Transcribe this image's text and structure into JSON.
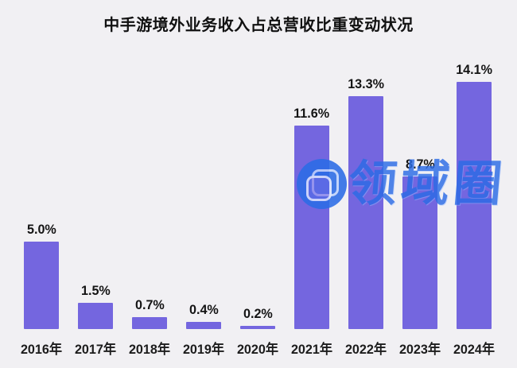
{
  "title": "中手游境外业务收入占总营收比重变动状况",
  "watermark": {
    "text": "领域圈",
    "logo_icon": "circle-rounded-squares-logo",
    "color": "#2B6CE6"
  },
  "colors": {
    "background": "#F1F0F3",
    "bar": "#7466DF",
    "text": "#141414",
    "watermark_blue": "#2B6CE6"
  },
  "chart_data": {
    "type": "bar",
    "title": "中手游境外业务收入占总营收比重变动状况",
    "categories": [
      "2016年",
      "2017年",
      "2018年",
      "2019年",
      "2020年",
      "2021年",
      "2022年",
      "2023年",
      "2024年"
    ],
    "values": [
      5.0,
      1.5,
      0.7,
      0.4,
      0.2,
      11.6,
      13.3,
      8.7,
      14.1
    ],
    "value_labels": [
      "5.0%",
      "1.5%",
      "0.7%",
      "0.4%",
      "0.2%",
      "11.6%",
      "13.3%",
      "8.7%",
      "14.1%"
    ],
    "xlabel": "",
    "ylabel": "",
    "ylim": [
      0,
      15
    ],
    "grid": false,
    "legend": null,
    "data_labels_position": "above-bar"
  }
}
